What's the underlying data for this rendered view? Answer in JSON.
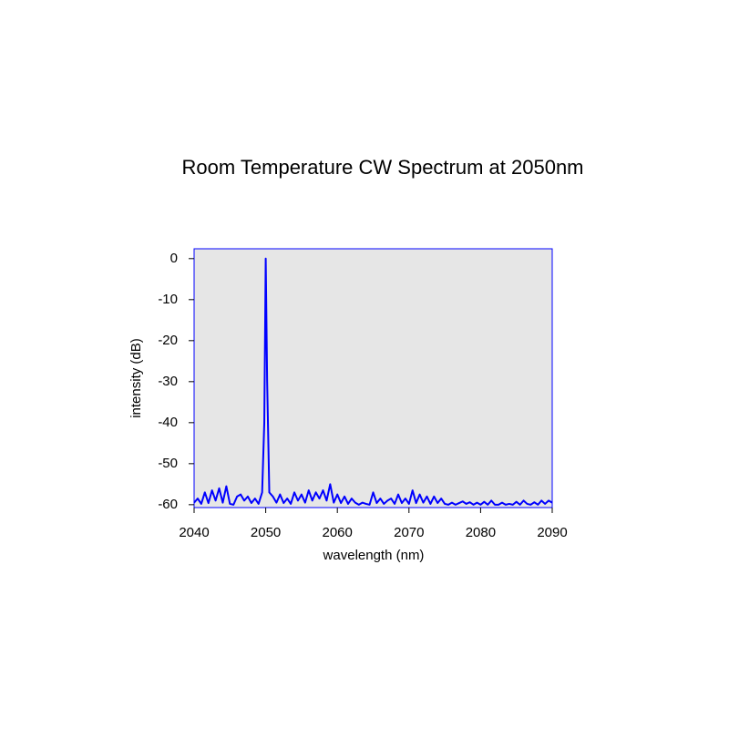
{
  "chart_data": {
    "type": "line",
    "title": "Room Temperature CW Spectrum at 2050nm",
    "x_label": "wavelength (nm)",
    "y_label": "intensity (dB)",
    "xlim": [
      2040,
      2090
    ],
    "ylim": [
      -60.7,
      2.4
    ],
    "xticks": [
      2040,
      2050,
      2060,
      2070,
      2080,
      2090
    ],
    "yticks": [
      -60,
      -50,
      -40,
      -30,
      -20,
      -10,
      0
    ],
    "grid": false,
    "background": "#e6e6e6",
    "frame_color": "#0000ff",
    "x": [
      2040,
      2040.5,
      2041,
      2041.5,
      2042,
      2042.5,
      2043,
      2043.5,
      2044,
      2044.5,
      2045,
      2045.5,
      2046,
      2046.5,
      2047,
      2047.5,
      2048,
      2048.5,
      2049,
      2049.5,
      2049.8,
      2050,
      2050.2,
      2050.5,
      2051,
      2051.5,
      2052,
      2052.5,
      2053,
      2053.5,
      2054,
      2054.5,
      2055,
      2055.5,
      2056,
      2056.5,
      2057,
      2057.5,
      2058,
      2058.5,
      2059,
      2059.5,
      2060,
      2060.5,
      2061,
      2061.5,
      2062,
      2062.5,
      2063,
      2063.5,
      2064,
      2064.5,
      2065,
      2065.5,
      2066,
      2066.5,
      2067,
      2067.5,
      2068,
      2068.5,
      2069,
      2069.5,
      2070,
      2070.5,
      2071,
      2071.5,
      2072,
      2072.5,
      2073,
      2073.5,
      2074,
      2074.5,
      2075,
      2075.5,
      2076,
      2076.5,
      2077,
      2077.5,
      2078,
      2078.5,
      2079,
      2079.5,
      2080,
      2080.5,
      2081,
      2081.5,
      2082,
      2082.5,
      2083,
      2083.5,
      2084,
      2084.5,
      2085,
      2085.5,
      2086,
      2086.5,
      2087,
      2087.5,
      2088,
      2088.5,
      2089,
      2089.5,
      2090
    ],
    "series": [
      {
        "color": "#0000ff",
        "values": [
          -59.5,
          -58.5,
          -59.8,
          -57,
          -59.6,
          -56.5,
          -59,
          -56,
          -59.5,
          -55.5,
          -59.8,
          -60,
          -58,
          -57.5,
          -59,
          -58,
          -59.6,
          -58.5,
          -59.8,
          -57,
          -40,
          0,
          -30,
          -57,
          -58,
          -59.5,
          -57.5,
          -59.6,
          -58.5,
          -59.8,
          -57,
          -59,
          -57.5,
          -59.5,
          -56.5,
          -59,
          -57,
          -58.5,
          -56.5,
          -59,
          -55,
          -59.5,
          -57.5,
          -59.6,
          -58,
          -59.8,
          -58.5,
          -59.5,
          -60,
          -59.5,
          -59.8,
          -60,
          -57,
          -59.6,
          -58.5,
          -59.8,
          -59,
          -58.5,
          -59.8,
          -57.5,
          -59.6,
          -58.5,
          -59.8,
          -56.5,
          -59.6,
          -57.5,
          -59.5,
          -58,
          -59.8,
          -58,
          -59.6,
          -58.5,
          -59.8,
          -60,
          -59.5,
          -60,
          -59.6,
          -59.2,
          -59.8,
          -59.4,
          -60,
          -59.5,
          -60,
          -59.3,
          -60,
          -59,
          -60,
          -60,
          -59.5,
          -60,
          -59.8,
          -60,
          -59.3,
          -60,
          -59,
          -59.8,
          -60,
          -59.4,
          -60,
          -59,
          -59.8,
          -59,
          -59.5
        ]
      }
    ]
  }
}
